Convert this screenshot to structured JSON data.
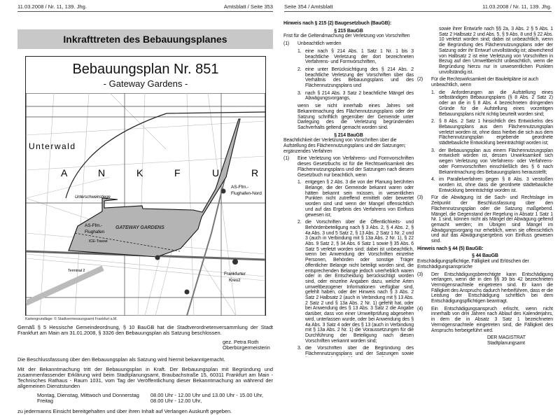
{
  "left_page": {
    "header_left": "11.03.2008 / Nr. 11, 139. Jhg.",
    "header_right": "Amtsblatt / Seite 353",
    "title": "Inkrafttreten des Bebauungsplanes",
    "map": {
      "title": "Bebauungsplan Nr. 851",
      "subtitle": "- Gateway Gardens -",
      "labels": {
        "unterwald": "Unterwald",
        "frankfurt_letters": [
          "A",
          "N",
          "K",
          "F",
          "U",
          "R"
        ],
        "as_nord": "AS-Ffm.-",
        "as_nord2": "Flughafen-Nord",
        "unterschweinstiege": "Unterschweinstiege",
        "as_flughafen": "AS-Ffm.-",
        "as_flughafen2": "Flughafen",
        "gateway": "GATEWAY GARDENS",
        "ice": "ICE-Trasse",
        "terminal": "Terminal 2",
        "kreuz": "Frankfurter",
        "kreuz2": "Kreuz"
      },
      "fill_color": "#b4b4b4"
    },
    "caption": "Kartengrundlage: © Stadtvermessungsamt Frankfurt a.M.",
    "para1": "Gemäß § 5 Hessische Gemeindeordnung, § 10 BauGB hat die Stadtverordnetenversammlung der Stadt Frankfurt am Main am 31.01.2008, § 3326 den Bebauungsplan als Satzung beschlossen.",
    "sign_name": "gez. Petra Roth",
    "sign_role": "Oberbürgermeisterin",
    "para2": "Die Beschlussfassung über den Bebauungsplan als Satzung wird hiermit bekanntgemacht.",
    "para3": "Mit der Bekanntmachung tritt der Bebauungsplan in Kraft. Der Bebauungsplan mit Begründung und zusammenfassender Erklärung wird beim Stadtplanungsamt, Braubachstraße 15, 60311 Frankfurt am Main - Technisches Rathaus - Raum 1031, vom Tag der Veröffentlichung dieser Bekanntmachung an während der allgemeinen Dienststunden",
    "hours": [
      {
        "days": "Montag, Dienstag, Mittwoch und Donnerstag",
        "time": "08.00 Uhr - 12.00 Uhr und 13.00 Uhr - 15.00 Uhr,"
      },
      {
        "days": "Freitag",
        "time": "08.00 Uhr - 12.00 Uhr,"
      }
    ],
    "para4": "zu jedermanns Einsicht bereitgehalten und über ihren Inhalt auf Verlangen Auskunft gegeben."
  },
  "right_page": {
    "header_left": "Seite 354 / Amtsblatt",
    "header_right": "11.03.2008 / Nr. 11, 139. Jhg.",
    "h215": "Hinweis nach § 215 (2) Baugesetzbuch (BauGB):",
    "s215_title": "§ 215 BauGB",
    "s215_sub": "Frist für die Geltendmachung der Verletzung von Vorschriften",
    "s215_1_num": "(1)",
    "s215_1": "Unbeachtlich werden",
    "s215_items": [
      {
        "n": "1.",
        "t": "eine nach § 214 Abs. 1 Satz 1 Nr. 1 bis 3 beachtliche Verletzung der dort bezeichneten Verfahrens- und Formvorschriften,"
      },
      {
        "n": "2.",
        "t": "eine unter Berücksichtigung des § 214 Abs. 2 beachtliche Verletzung der Vorschriften über das Verhältnis des Bebauungsplans und des Flächennutzungsplans und"
      },
      {
        "n": "3.",
        "t": "nach § 214 Abs. 3 Satz 2 beachtliche Mängel des Abwägungsvorgangs,"
      }
    ],
    "s215_tail": "wenn sie nicht innerhalb eines Jahres seit Bekanntmachung des Flächennutzungsplans oder der Satzung schriftlich gegenüber der Gemeinde unter Darlegung des die Verletzung begründenden Sachverhalts geltend gemacht worden sind.",
    "s214_title": "§ 214 BauGB",
    "s214_sub": "Beachtlichkeit der Verletzung von Vorschriften über die Aufstellung des Flächennutzungsplans und der Satzungen; ergänzendes Verfahren",
    "s214_1_num": "(1)",
    "s214_1": "Eine Verletzung von Verfahrens- und Formvorschriften dieses Gesetzbuchs ist für die Rechtswirksamkeit des Flächennutzungsplans und der Satzungen nach diesem Gesetzbuch nur beachtlich, wenn",
    "s214_1_items": [
      {
        "n": "1.",
        "t": "entgegen § 2 Abs. 3 die von der Planung berührten Belange, die der Gemeinde bekannt waren oder hätten bekannt sein müssen, in wesentlichen Punkten nicht zutreffend ermittelt oder bewertet worden sind und wenn der Mangel offensichtlich und auf das Ergebnis des Verfahrens von Einfluss gewesen ist;"
      },
      {
        "n": "2.",
        "t": "die Vorschriften über die Öffentlichkeits- und Behördenbeteiligung nach § 3 Abs. 2, § 4 Abs. 2, § 4a Abs. 3 und 5 Satz 2, § 13 Abs. 2 Satz 1 Nr. 2 und 3 (auch in Verbindung mit § 13a Abs. 2 Nr. 1), § 22 Abs. 9 Satz 2, § 34 Abs. 6 Satz 1 sowie § 35 Abs. 6 Satz 5 verletzt worden sind; dabei ist unbeachtlich, wenn bei Anwendung der Vorschriften einzelne Personen, Behörden oder sonstige Träger öffentlicher Belange nicht beteiligt worden sind, die entsprechenden Belange jedoch unerheblich waren oder in der Entscheidung berücksichtigt worden sind, oder einzelne Angaben dazu, welche Arten umweltbezogener Informationen verfügbar sind, gefehlt haben, oder der Hinweis nach § 3 Abs. 2 Satz 2 Halbsatz 2 (auch in Verbindung mit § 13 Abs. 2 Satz 2 und § 13a Abs. 2 Nr. 1) gefehlt hat, oder bei Anwendung des § 13 Abs. 3 Satz 2 die Angabe darüber, dass von einer Umweltprüfung abgesehen wird, unterlassen wurde, oder bei Anwendung des § 4a Abs. 3 Satz 4 oder des § 13 (auch in Verbindung mit § 13a Abs. 2 Nr. 1) die Voraussetzungen für die Durchführung der Beteiligung nach diesen Vorschriften verkannt worden sind;"
      },
      {
        "n": "3.",
        "t": "die Vorschriften über die Begründung des Flächennutzungsplans und der Satzungen sowie ihrer Entwürfe nach §§ 2a, 3 Abs. 2 § 5 Abs. 1 Satz 2 Halbsatz 2 und Abs. 5, § 9 Abs. 8 und § 22 Abs. 10 verletzt worden sind; dabei ist unbeachtlich, wenn die Begründung des Flächennutzungsplans oder der Satzung oder ihr Entwurf unvollständig ist; abweichend von Halbsatz 2 ist eine Verletzung von Vorschriften in Bezug auf den Umweltbericht unbeachtlich, wenn die Begründung hierzu nur in unwesentlichen Punkten unvollständig ist."
      }
    ],
    "s214_2_num": "(2)",
    "s214_2": "Für die Rechtswirksamkeit der Bauleitpläne ist auch unbeachtlich, wenn",
    "s214_2_items": [
      {
        "n": "1.",
        "t": "die Anforderungen an die Aufstellung eines selbständigen Bebauungsplans (§ 8 Abs. 2 Satz 2) oder an die in § 8 Abs. 4 bezeichneten dringenden Gründe für die Aufstellung eines vorzeitigen Bebauungsplans nicht richtig beurteilt worden sind;"
      },
      {
        "n": "2.",
        "t": "§ 8 Abs. 2 Satz 1 hinsichtlich des Entwickelns des Bebauungsplans aus dem Flächennutzungsplan verletzt worden ist, ohne dass hierbei die sich aus dem Flächennutzungsplan ergebende geordnete städtebauliche Entwicklung beeinträchtigt worden ist;"
      },
      {
        "n": "3.",
        "t": "der Bebauungsplan aus einem Flächennutzungsplan entwickelt worden ist, dessen Unwirksamkeit sich wegen Verletzung von Verfahrens- oder Verfahrens- oder Formvorschriften einschließlich des § 6 nach Bekanntmachung des Bebauungsplans herausstellt;"
      },
      {
        "n": "4.",
        "t": "im Parallelverfahren gegen § 8 Abs. 3 verstoßen worden ist, ohne dass die geordnete städtebauliche Entwicklung beeinträchtigt worden ist."
      }
    ],
    "s214_3_num": "(3)",
    "s214_3": "Für die Abwägung ist die Sach- und Rechtslage im Zeitpunkt der Beschlussfassung über den Flächennutzungsplan oder die Satzung maßgebend. Mängel, die Gegenstand der Regelung in Absatz 1 Satz 1 Nr. 1 sind, können nicht als Mängel der Abwägung geltend gemacht werden; im Übrigen sind Mängel im Abwägungsvorgang nur erheblich, wenn sie offensichtlich und auf das Abwägungsergebnis von Einfluss gewesen sind.",
    "h44": "Hinweis nach § 44 (5) BauGB:",
    "s44_title": "§ 44 BauGB",
    "s44_sub": "Entschädigungspflichtige, Fälligkeit und Erlöschen der Entschädigungsansprüche",
    "s44_3_num": "(3)",
    "s44_3": "Der Entschädigungsberechtigte kann Entschädigung verlangen, wenn die in den §§ 39 bis 42 bezeichneten Vermögensnachteile eingetreten sind. Er kann die Fälligkeit des Anspruchs dadurch herbeiführen, dass er die Leistung der Entschädigung schriftlich bei dem Entschädigungspflichtigen beantragt.",
    "s44_4_num": "(4)",
    "s44_4": "Ein Entschädigungsanspruch erlischt, wenn nicht innerhalb von drei Jahren nach Ablauf des Kalenderjahrs, in dem die in Absatz 3 Satz 1 bezeichneten Vermögensnachteile eingetreten sind, die Fälligkeit des Anspruchs herbeigeführt wird.",
    "sign1": "DER MAGISTRAT",
    "sign2": "Stadtplanungsamt"
  }
}
